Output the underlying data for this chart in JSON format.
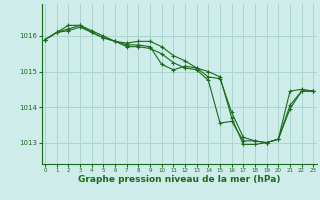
{
  "background_color": "#ceecea",
  "grid_color": "#aed4d0",
  "line_color": "#1a6b1a",
  "xlabel": "Graphe pression niveau de la mer (hPa)",
  "xlabel_fontsize": 6.5,
  "yticks": [
    1013,
    1014,
    1015,
    1016
  ],
  "ylim": [
    1012.4,
    1016.9
  ],
  "xlim": [
    -0.3,
    23.3
  ],
  "series": [
    [
      1015.9,
      1016.1,
      1016.15,
      1016.25,
      1016.1,
      1015.95,
      1015.85,
      1015.8,
      1015.85,
      1015.85,
      1015.7,
      1015.45,
      1015.3,
      1015.1,
      1015.0,
      1014.85,
      1013.7,
      1012.95,
      1012.95,
      1013.0,
      1013.1,
      1014.45,
      1014.5,
      1014.45
    ],
    [
      1015.9,
      1016.1,
      1016.3,
      1016.3,
      1016.15,
      1016.0,
      1015.85,
      1015.7,
      1015.7,
      1015.65,
      1015.5,
      1015.25,
      1015.1,
      1015.05,
      1014.75,
      1013.55,
      1013.6,
      1013.05,
      1013.05,
      1013.0,
      1013.1,
      1013.95,
      1014.45,
      1014.45
    ],
    [
      1015.9,
      1016.1,
      1016.2,
      1016.3,
      1016.1,
      1015.95,
      1015.85,
      1015.75,
      1015.75,
      1015.7,
      1015.2,
      1015.05,
      1015.15,
      1015.1,
      1014.85,
      1014.8,
      1013.85,
      1013.15,
      1013.05,
      1013.0,
      1013.1,
      1014.05,
      1014.45,
      1014.45
    ]
  ]
}
